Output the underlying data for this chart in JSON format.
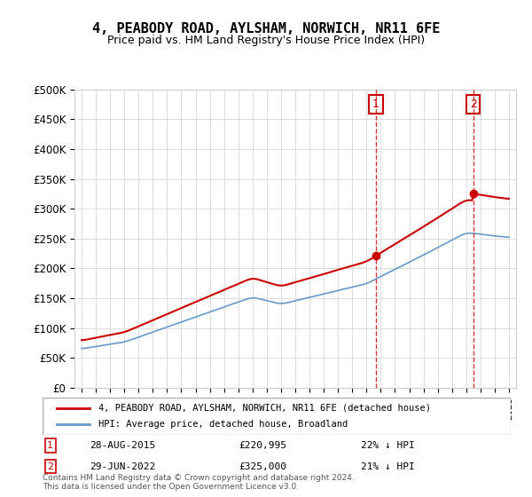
{
  "title": "4, PEABODY ROAD, AYLSHAM, NORWICH, NR11 6FE",
  "subtitle": "Price paid vs. HM Land Registry's House Price Index (HPI)",
  "legend_line1": "4, PEABODY ROAD, AYLSHAM, NORWICH, NR11 6FE (detached house)",
  "legend_line2": "HPI: Average price, detached house, Broadland",
  "annotation1_label": "1",
  "annotation1_date": "28-AUG-2015",
  "annotation1_price": "£220,995",
  "annotation1_hpi": "22% ↓ HPI",
  "annotation2_label": "2",
  "annotation2_date": "29-JUN-2022",
  "annotation2_price": "£325,000",
  "annotation2_hpi": "21% ↓ HPI",
  "footer": "Contains HM Land Registry data © Crown copyright and database right 2024.\nThis data is licensed under the Open Government Licence v3.0.",
  "hpi_color": "#6699cc",
  "price_color": "#cc0000",
  "vline_color": "#cc0000",
  "annotation_box_color": "#cc0000",
  "ylim": [
    0,
    500000
  ],
  "yticks": [
    0,
    50000,
    100000,
    150000,
    200000,
    250000,
    300000,
    350000,
    400000,
    450000,
    500000
  ],
  "year_start": 1995,
  "year_end": 2025,
  "sale1_year": 2015.66,
  "sale2_year": 2022.5,
  "sale1_price": 220995,
  "sale2_price": 325000
}
